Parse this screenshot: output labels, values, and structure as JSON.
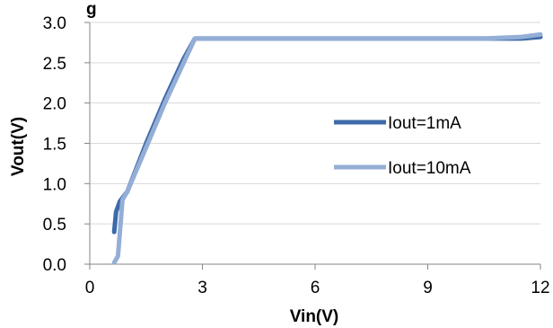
{
  "chart_data": {
    "type": "line",
    "title": "g",
    "xlabel": "Vin(V)",
    "ylabel": "Vout(V)",
    "xlim": [
      0,
      12
    ],
    "ylim": [
      0,
      3.0
    ],
    "xticks": [
      0,
      3,
      6,
      9,
      12
    ],
    "xtick_labels": [
      "0",
      "3",
      "6",
      "9",
      "12"
    ],
    "yticks": [
      0,
      0.5,
      1.0,
      1.5,
      2.0,
      2.5,
      3.0
    ],
    "ytick_labels": [
      "0.0",
      "0.5",
      "1.0",
      "1.5",
      "2.0",
      "2.5",
      "3.0"
    ],
    "grid": "horizontal",
    "legend_position": "right",
    "series": [
      {
        "name": "Iout=1mA",
        "color": "#3d6aa8",
        "x": [
          0.65,
          0.7,
          0.8,
          1.0,
          1.5,
          2.0,
          2.5,
          2.8,
          3.0,
          6.0,
          9.0,
          10.5,
          11.5,
          12.0
        ],
        "y": [
          0.4,
          0.65,
          0.78,
          0.9,
          1.5,
          2.05,
          2.55,
          2.8,
          2.8,
          2.8,
          2.8,
          2.8,
          2.8,
          2.82
        ]
      },
      {
        "name": "Iout=10mA",
        "color": "#94aed6",
        "x": [
          0.65,
          0.75,
          0.82,
          0.87,
          1.0,
          1.5,
          2.0,
          2.5,
          2.8,
          3.0,
          6.0,
          9.0,
          10.5,
          11.5,
          12.0
        ],
        "y": [
          0.02,
          0.1,
          0.5,
          0.8,
          0.9,
          1.45,
          2.0,
          2.5,
          2.8,
          2.8,
          2.8,
          2.8,
          2.8,
          2.82,
          2.85
        ]
      }
    ]
  }
}
